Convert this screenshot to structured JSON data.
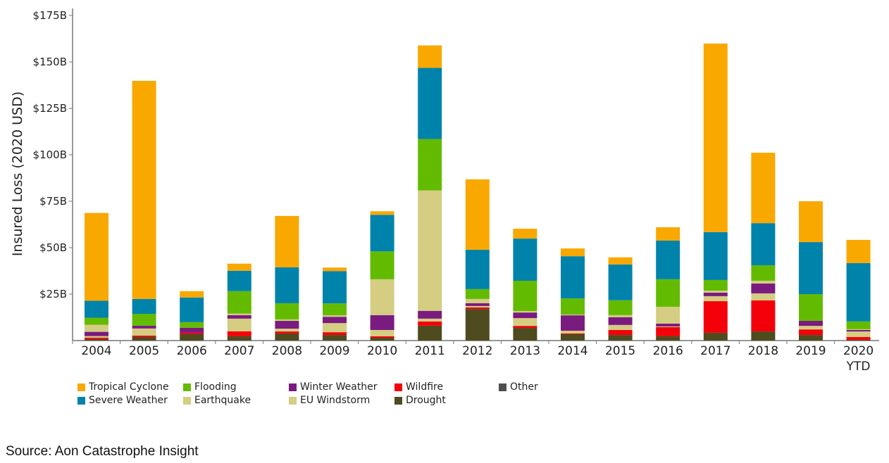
{
  "chart_data": {
    "type": "bar",
    "stacked": true,
    "title": "",
    "xlabel": "",
    "ylabel": "Insured Loss (2020 USD)",
    "ylim": [
      0,
      175
    ],
    "y_unit": "USD billions",
    "y_ticks": [
      {
        "value": 25,
        "label": "$25B"
      },
      {
        "value": 50,
        "label": "$50B"
      },
      {
        "value": 75,
        "label": "$75B"
      },
      {
        "value": 100,
        "label": "$100B"
      },
      {
        "value": 125,
        "label": "$125B"
      },
      {
        "value": 150,
        "label": "$150B"
      },
      {
        "value": 175,
        "label": "$175B"
      }
    ],
    "grid": false,
    "legend_position": "bottom",
    "categories": [
      "2004",
      "2005",
      "2006",
      "2007",
      "2008",
      "2009",
      "2010",
      "2011",
      "2012",
      "2013",
      "2014",
      "2015",
      "2016",
      "2017",
      "2018",
      "2019",
      "2020 YTD"
    ],
    "category_labels": [
      [
        "2004"
      ],
      [
        "2005"
      ],
      [
        "2006"
      ],
      [
        "2007"
      ],
      [
        "2008"
      ],
      [
        "2009"
      ],
      [
        "2010"
      ],
      [
        "2011"
      ],
      [
        "2012"
      ],
      [
        "2013"
      ],
      [
        "2014"
      ],
      [
        "2015"
      ],
      [
        "2016"
      ],
      [
        "2017"
      ],
      [
        "2018"
      ],
      [
        "2019"
      ],
      [
        "2020",
        "YTD"
      ]
    ],
    "stack_order_bottom_to_top": [
      "Drought",
      "Wildfire",
      "EU Windstorm",
      "Winter Weather",
      "Earthquake",
      "Flooding",
      "Severe Weather",
      "Tropical Cyclone"
    ],
    "series": [
      {
        "name": "Drought",
        "color": "#4E4B1F",
        "values": [
          0.8,
          1.9,
          3.4,
          2.3,
          3.8,
          3.0,
          1.5,
          8.0,
          17.0,
          6.8,
          3.4,
          3.0,
          2.3,
          4.2,
          4.9,
          3.0,
          0.4
        ]
      },
      {
        "name": "Wildfire",
        "color": "#F4000A",
        "values": [
          0.8,
          0.8,
          0.8,
          2.7,
          1.1,
          1.5,
          0.8,
          2.3,
          0.8,
          1.1,
          0.4,
          2.7,
          4.9,
          17.0,
          16.7,
          3.0,
          1.5
        ]
      },
      {
        "name": "EU Windstorm",
        "color": "#D4CD82",
        "values": [
          0.8,
          3.8,
          0.0,
          6.8,
          1.5,
          4.9,
          3.4,
          1.5,
          0.8,
          4.2,
          1.5,
          2.7,
          0.4,
          2.7,
          3.8,
          1.9,
          3.0
        ]
      },
      {
        "name": "Winter Weather",
        "color": "#7A1B80",
        "values": [
          2.3,
          1.5,
          2.7,
          1.9,
          4.2,
          3.4,
          8.0,
          4.2,
          1.5,
          3.0,
          8.3,
          4.2,
          1.5,
          1.9,
          5.3,
          2.7,
          0.8
        ]
      },
      {
        "name": "Earthquake",
        "color": "#D4CD82",
        "values": [
          3.8,
          0.0,
          0.0,
          0.8,
          0.8,
          0.8,
          19.3,
          64.8,
          2.3,
          0.8,
          0.4,
          1.1,
          9.1,
          1.1,
          1.5,
          0.0,
          0.4
        ]
      },
      {
        "name": "Flooding",
        "color": "#63BB00",
        "values": [
          3.8,
          6.4,
          3.0,
          12.1,
          8.7,
          6.4,
          15.0,
          27.7,
          5.3,
          16.3,
          8.7,
          8.0,
          14.8,
          5.7,
          8.3,
          14.4,
          4.2
        ]
      },
      {
        "name": "Severe Weather",
        "color": "#0083AB",
        "values": [
          9.1,
          8.0,
          13.3,
          11.0,
          19.3,
          17.4,
          19.7,
          38.3,
          21.2,
          22.7,
          22.7,
          19.3,
          20.8,
          25.8,
          22.7,
          28.0,
          31.4
        ]
      },
      {
        "name": "Tropical Cyclone",
        "color": "#F9A800",
        "values": [
          47.3,
          117.4,
          3.4,
          3.8,
          27.7,
          1.9,
          1.9,
          12.1,
          37.9,
          5.3,
          4.2,
          3.8,
          7.2,
          101.5,
          37.9,
          22.0,
          12.5
        ]
      },
      {
        "name": "Other",
        "color": "#4D4D4F",
        "values": [
          0,
          0,
          0,
          0,
          0,
          0,
          0,
          0,
          0,
          0,
          0,
          0,
          0,
          0,
          0,
          0,
          0
        ]
      }
    ]
  },
  "legend": {
    "items": [
      {
        "label": "Tropical Cyclone",
        "color": "#F9A800"
      },
      {
        "label": "Severe Weather",
        "color": "#0083AB"
      },
      {
        "label": "Flooding",
        "color": "#63BB00"
      },
      {
        "label": "Earthquake",
        "color": "#D4CD82"
      },
      {
        "label": "Winter Weather",
        "color": "#7A1B80"
      },
      {
        "label": "EU Windstorm",
        "color": "#D4CD82"
      },
      {
        "label": "Wildfire",
        "color": "#F4000A"
      },
      {
        "label": "Drought",
        "color": "#4E4B1F"
      },
      {
        "label": "Other",
        "color": "#4D4D4F"
      }
    ]
  },
  "source": "Source: Aon Catastrophe Insight"
}
